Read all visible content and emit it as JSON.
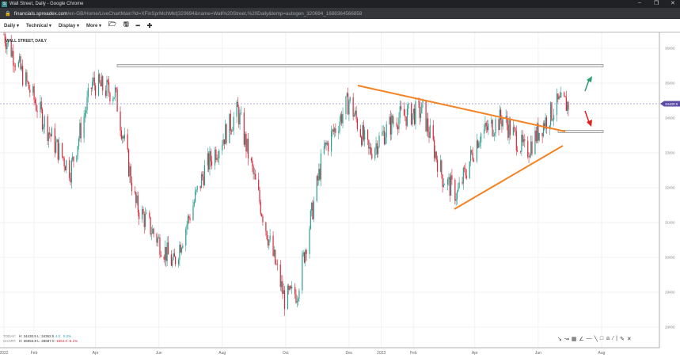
{
  "window": {
    "title": "Wall Street, Daily - Google Chrome",
    "url_host": "financials.spreadex.com",
    "url_path": "/en-GB/Home/LiveChartMain?id=XFinSprMchMkt|320694&name=Wall%20Street,%20Daily&temp=autogen_320694_1688364566858"
  },
  "toolbar": {
    "items": [
      "Daily ▾",
      "Technical ▾",
      "Display ▾",
      "More ▾"
    ],
    "icons": [
      "folder-open-icon",
      "save-icon",
      "zoom-out-icon",
      "zoom-in-icon"
    ],
    "icon_glyphs": [
      "🗁",
      "🖫",
      "━",
      "✚"
    ]
  },
  "chart": {
    "title": "WALL STREET, DAILY",
    "current_price": "34400.5",
    "y_ticks": [
      "36000",
      "35000",
      "34000",
      "33000",
      "32000",
      "31000",
      "30000",
      "29000",
      "28000"
    ],
    "x_ticks": [
      "2022",
      "Feb",
      "Apr",
      "Jun",
      "Aug",
      "Oct",
      "Dec",
      "2023",
      "Feb",
      "Apr",
      "Jun",
      "Aug"
    ],
    "colors": {
      "up": "#2a9d8f",
      "down": "#d62839",
      "trendline": "#f58220",
      "price_tag": "#5b4aa6"
    },
    "price_waypoints": [
      [
        "2022-01-03",
        36400
      ],
      [
        "2022-02-20",
        33300
      ],
      [
        "2022-03-08",
        32500
      ],
      [
        "2022-03-29",
        35000
      ],
      [
        "2022-04-20",
        34700
      ],
      [
        "2022-05-10",
        31500
      ],
      [
        "2022-06-15",
        29800
      ],
      [
        "2022-07-15",
        32500
      ],
      [
        "2022-08-16",
        34200
      ],
      [
        "2022-09-15",
        30500
      ],
      [
        "2022-09-30",
        28800
      ],
      [
        "2022-10-12",
        29000
      ],
      [
        "2022-11-06",
        33000
      ],
      [
        "2022-12-01",
        34500
      ],
      [
        "2022-12-20",
        33000
      ],
      [
        "2023-01-15",
        34000
      ],
      [
        "2023-02-10",
        34200
      ],
      [
        "2023-03-01",
        32300
      ],
      [
        "2023-03-15",
        31800
      ],
      [
        "2023-04-05",
        33500
      ],
      [
        "2023-04-28",
        34000
      ],
      [
        "2023-05-20",
        33000
      ],
      [
        "2023-06-05",
        33800
      ],
      [
        "2023-06-20",
        34400
      ],
      [
        "2023-07-03",
        34400
      ]
    ]
  },
  "info": {
    "today_label": "TODAY:",
    "today_h": "H: 34430.5",
    "today_l": "L: 34362.5",
    "today_chg": "4.0",
    "today_pct": "0.0%",
    "chart_label": "CHART:",
    "chart_h": "H: 36953.8",
    "chart_l": "L: 28587.0",
    "chart_chg": "-1864.0",
    "chart_pct": "-5.1%"
  }
}
